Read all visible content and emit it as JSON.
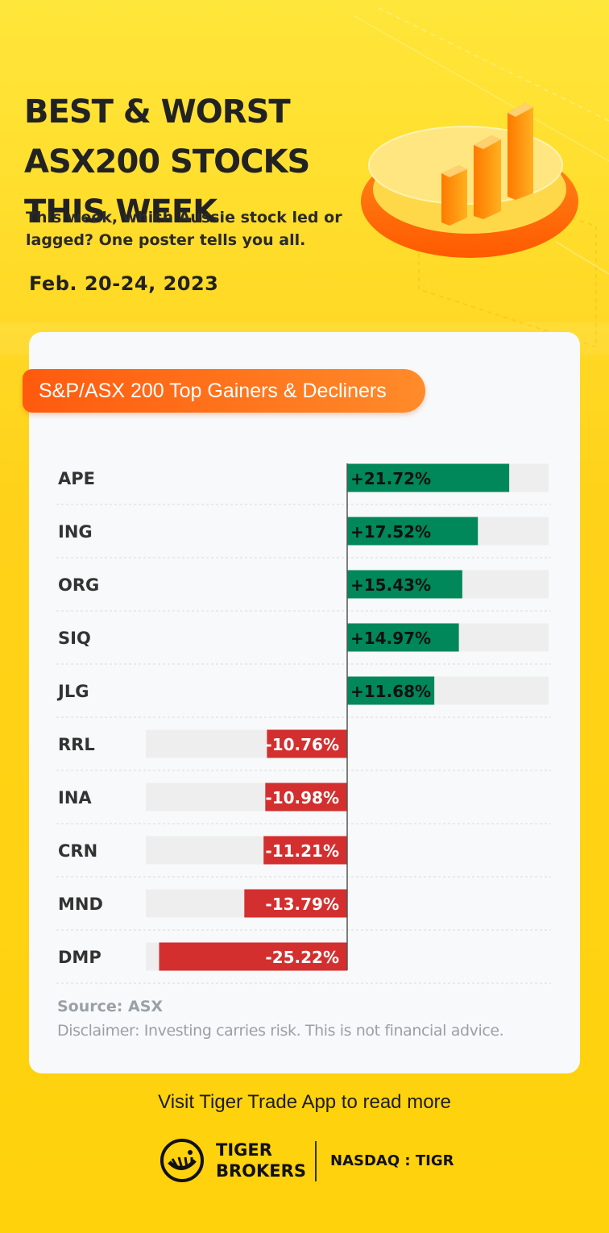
{
  "header": {
    "title": "BEST & WORST ASX200 STOCKS THIS WEEK",
    "subtitle": "This week, which Aussie stock led or lagged? One poster tells you all.",
    "date": "Feb. 20-24, 2023"
  },
  "card": {
    "pill_label": "S&P/ASX 200 Top Gainers & Decliners",
    "source": "Source: ASX",
    "disclaimer": "Disclaimer: Investing carries risk. This is not financial advice."
  },
  "chart_data": {
    "type": "bar",
    "orientation": "horizontal-diverging",
    "title": "S&P/ASX 200 Top Gainers & Decliners",
    "categories": [
      "APE",
      "ING",
      "ORG",
      "SIQ",
      "JLG",
      "RRL",
      "INA",
      "CRN",
      "MND",
      "DMP"
    ],
    "values": [
      21.72,
      17.52,
      15.43,
      14.97,
      11.68,
      -10.76,
      -10.98,
      -11.21,
      -13.79,
      -25.22
    ],
    "labels": [
      "+21.72%",
      "+17.52%",
      "+15.43%",
      "+14.97%",
      "+11.68%",
      "-10.76%",
      "-10.98%",
      "-11.21%",
      "-13.79%",
      "-25.22%"
    ],
    "xlim": [
      -27,
      27
    ],
    "colors": {
      "positive": "#00875a",
      "negative": "#d32f2f",
      "track": "#eeeeee"
    },
    "grid": false,
    "legend": "none"
  },
  "footer": {
    "cta": "Visit Tiger Trade App to read more",
    "brand_line1": "TIGER",
    "brand_line2": "BROKERS",
    "ticker": "NASDAQ : TIGR"
  },
  "icons": [
    "bar-chart-podium-icon",
    "tiger-logo-icon"
  ]
}
